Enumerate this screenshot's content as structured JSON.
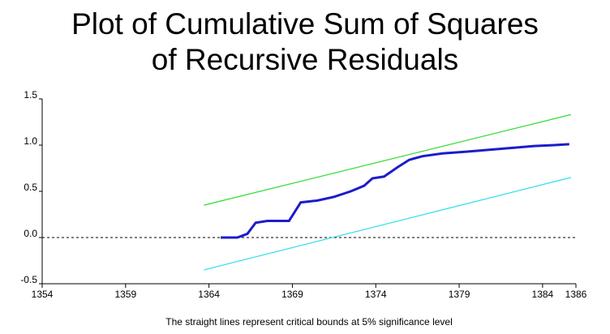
{
  "chart_data": {
    "type": "line",
    "title": "Plot of Cumulative Sum of Squares of Recursive Residuals",
    "footnote": "The straight lines represent critical bounds at 5% significance level",
    "xlim": [
      1354,
      1386
    ],
    "xticks": [
      1354,
      1359,
      1364,
      1369,
      1374,
      1379,
      1384,
      1386
    ],
    "ylim": [
      -0.5,
      1.5
    ],
    "yticks": [
      -0.5,
      {
        "value": 0,
        "label": "0.0"
      },
      0.5,
      {
        "value": 1,
        "label": "1.0"
      },
      1.5
    ],
    "hline": 0,
    "series": [
      {
        "color": "#1c1ccc",
        "x": [
          1364.7,
          1365.7,
          1366.3,
          1366.8,
          1367.5,
          1368.8,
          1369.5,
          1370.5,
          1371.5,
          1372.5,
          1373.3,
          1373.8,
          1374.5,
          1375.3,
          1376,
          1376.8,
          1378,
          1379.5,
          1380.8,
          1382.2,
          1383.5,
          1384.7,
          1385.6
        ],
        "values": [
          0,
          0,
          0.04,
          0.16,
          0.18,
          0.18,
          0.38,
          0.4,
          0.44,
          0.5,
          0.56,
          0.64,
          0.66,
          0.76,
          0.84,
          0.88,
          0.91,
          0.93,
          0.95,
          0.97,
          0.99,
          1.0,
          1.01
        ]
      },
      {
        "color": "#33dd33",
        "x": [
          1363.7,
          1385.7
        ],
        "values": [
          0.35,
          1.33
        ]
      },
      {
        "color": "#33ddee",
        "x": [
          1363.7,
          1385.7
        ],
        "values": [
          -0.35,
          0.65
        ]
      }
    ]
  }
}
